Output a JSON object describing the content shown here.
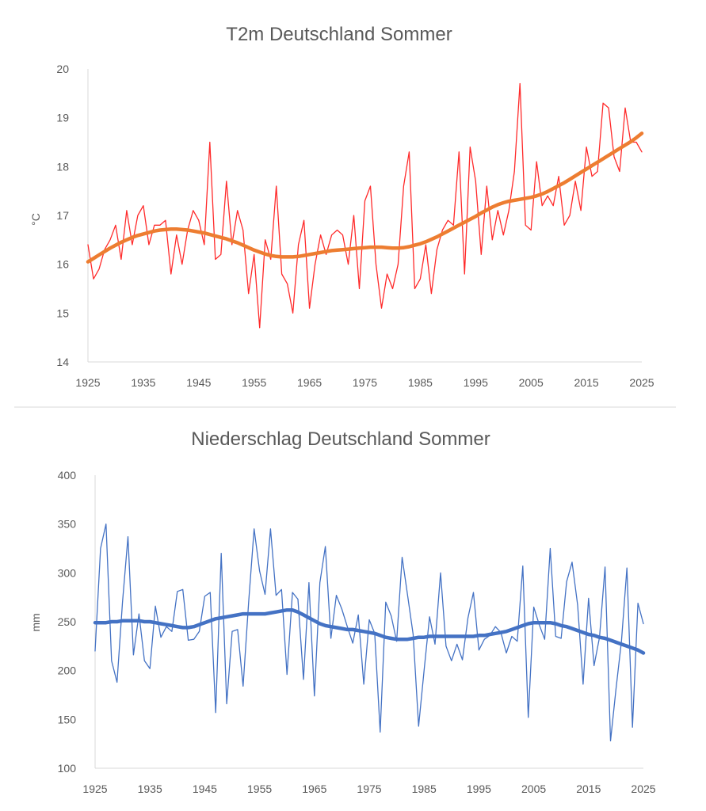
{
  "chart_data": [
    {
      "type": "line",
      "title": "T2m Deutschland Sommer",
      "xlabel": "",
      "ylabel": "°C",
      "xlim": [
        1925,
        2025
      ],
      "ylim": [
        14,
        20
      ],
      "y_ticks": [
        14,
        15,
        16,
        17,
        18,
        19,
        20
      ],
      "x_ticks": [
        1925,
        1935,
        1945,
        1955,
        1965,
        1975,
        1985,
        1995,
        2005,
        2015,
        2025
      ],
      "grid": false,
      "x": [
        1925,
        1926,
        1927,
        1928,
        1929,
        1930,
        1931,
        1932,
        1933,
        1934,
        1935,
        1936,
        1937,
        1938,
        1939,
        1940,
        1941,
        1942,
        1943,
        1944,
        1945,
        1946,
        1947,
        1948,
        1949,
        1950,
        1951,
        1952,
        1953,
        1954,
        1955,
        1956,
        1957,
        1958,
        1959,
        1960,
        1961,
        1962,
        1963,
        1964,
        1965,
        1966,
        1967,
        1968,
        1969,
        1970,
        1971,
        1972,
        1973,
        1974,
        1975,
        1976,
        1977,
        1978,
        1979,
        1980,
        1981,
        1982,
        1983,
        1984,
        1985,
        1986,
        1987,
        1988,
        1989,
        1990,
        1991,
        1992,
        1993,
        1994,
        1995,
        1996,
        1997,
        1998,
        1999,
        2000,
        2001,
        2002,
        2003,
        2004,
        2005,
        2006,
        2007,
        2008,
        2009,
        2010,
        2011,
        2012,
        2013,
        2014,
        2015,
        2016,
        2017,
        2018,
        2019,
        2020,
        2021,
        2022,
        2023,
        2024,
        2025
      ],
      "series": [
        {
          "name": "",
          "color": "#ff2a2a",
          "width": 1.3,
          "values": [
            16.4,
            15.7,
            15.9,
            16.3,
            16.5,
            16.8,
            16.1,
            17.1,
            16.4,
            17.0,
            17.2,
            16.4,
            16.8,
            16.8,
            16.9,
            15.8,
            16.6,
            16.0,
            16.7,
            17.1,
            16.9,
            16.4,
            18.5,
            16.1,
            16.2,
            17.7,
            16.4,
            17.1,
            16.7,
            15.4,
            16.2,
            14.7,
            16.5,
            16.1,
            17.6,
            15.8,
            15.6,
            15.0,
            16.4,
            16.9,
            15.1,
            16.0,
            16.6,
            16.2,
            16.6,
            16.7,
            16.6,
            16.0,
            17.0,
            15.5,
            17.3,
            17.6,
            16.0,
            15.1,
            15.8,
            15.5,
            16.0,
            17.6,
            18.3,
            15.5,
            15.7,
            16.4,
            15.4,
            16.3,
            16.7,
            16.9,
            16.8,
            18.3,
            15.8,
            18.4,
            17.7,
            16.2,
            17.6,
            16.5,
            17.1,
            16.6,
            17.1,
            17.9,
            19.7,
            16.8,
            16.7,
            18.1,
            17.2,
            17.4,
            17.2,
            17.8,
            16.8,
            17.0,
            17.7,
            17.1,
            18.4,
            17.8,
            17.9,
            19.3,
            19.2,
            18.2,
            17.9,
            19.2,
            18.5,
            18.5,
            18.3
          ]
        },
        {
          "name": "",
          "color": "#ed7d31",
          "width": 4.5,
          "values": [
            16.05,
            16.12,
            16.19,
            16.26,
            16.33,
            16.39,
            16.45,
            16.5,
            16.55,
            16.59,
            16.62,
            16.65,
            16.68,
            16.7,
            16.71,
            16.72,
            16.72,
            16.71,
            16.7,
            16.68,
            16.66,
            16.64,
            16.61,
            16.58,
            16.55,
            16.52,
            16.48,
            16.44,
            16.39,
            16.34,
            16.29,
            16.25,
            16.21,
            16.18,
            16.16,
            16.15,
            16.15,
            16.15,
            16.16,
            16.18,
            16.2,
            16.22,
            16.24,
            16.26,
            16.28,
            16.29,
            16.3,
            16.31,
            16.32,
            16.33,
            16.34,
            16.35,
            16.35,
            16.35,
            16.34,
            16.33,
            16.33,
            16.34,
            16.36,
            16.39,
            16.42,
            16.46,
            16.51,
            16.56,
            16.62,
            16.68,
            16.74,
            16.8,
            16.86,
            16.92,
            16.98,
            17.05,
            17.11,
            17.17,
            17.22,
            17.26,
            17.29,
            17.31,
            17.33,
            17.35,
            17.37,
            17.4,
            17.44,
            17.49,
            17.55,
            17.61,
            17.67,
            17.74,
            17.81,
            17.88,
            17.95,
            18.02,
            18.09,
            18.16,
            18.23,
            18.3,
            18.37,
            18.44,
            18.51,
            18.59,
            18.68
          ]
        }
      ]
    },
    {
      "type": "line",
      "title": "Niederschlag Deutschland Sommer",
      "xlabel": "",
      "ylabel": "mm",
      "xlim": [
        1925,
        2025
      ],
      "ylim": [
        100,
        400
      ],
      "y_ticks": [
        100,
        150,
        200,
        250,
        300,
        350,
        400
      ],
      "x_ticks": [
        1925,
        1935,
        1945,
        1955,
        1965,
        1975,
        1985,
        1995,
        2005,
        2015,
        2025
      ],
      "grid": false,
      "x": [
        1925,
        1926,
        1927,
        1928,
        1929,
        1930,
        1931,
        1932,
        1933,
        1934,
        1935,
        1936,
        1937,
        1938,
        1939,
        1940,
        1941,
        1942,
        1943,
        1944,
        1945,
        1946,
        1947,
        1948,
        1949,
        1950,
        1951,
        1952,
        1953,
        1954,
        1955,
        1956,
        1957,
        1958,
        1959,
        1960,
        1961,
        1962,
        1963,
        1964,
        1965,
        1966,
        1967,
        1968,
        1969,
        1970,
        1971,
        1972,
        1973,
        1974,
        1975,
        1976,
        1977,
        1978,
        1979,
        1980,
        1981,
        1982,
        1983,
        1984,
        1985,
        1986,
        1987,
        1988,
        1989,
        1990,
        1991,
        1992,
        1993,
        1994,
        1995,
        1996,
        1997,
        1998,
        1999,
        2000,
        2001,
        2002,
        2003,
        2004,
        2005,
        2006,
        2007,
        2008,
        2009,
        2010,
        2011,
        2012,
        2013,
        2014,
        2015,
        2016,
        2017,
        2018,
        2019,
        2020,
        2021,
        2022,
        2023,
        2024,
        2025
      ],
      "series": [
        {
          "name": "",
          "color": "#4472c4",
          "width": 1.3,
          "values": [
            220,
            325,
            350,
            210,
            188,
            270,
            337,
            216,
            258,
            210,
            202,
            266,
            234,
            245,
            240,
            281,
            283,
            231,
            232,
            240,
            276,
            280,
            157,
            320,
            166,
            240,
            242,
            184,
            270,
            345,
            302,
            278,
            345,
            277,
            283,
            196,
            280,
            273,
            191,
            290,
            174,
            290,
            327,
            233,
            277,
            263,
            245,
            228,
            257,
            186,
            252,
            238,
            137,
            270,
            256,
            230,
            316,
            277,
            237,
            143,
            200,
            255,
            227,
            300,
            225,
            210,
            227,
            211,
            254,
            280,
            221,
            232,
            236,
            245,
            239,
            218,
            235,
            230,
            307,
            152,
            265,
            247,
            232,
            325,
            235,
            233,
            291,
            311,
            267,
            186,
            274,
            205,
            234,
            306,
            128,
            181,
            230,
            305,
            142,
            269,
            248
          ]
        },
        {
          "name": "",
          "color": "#4472c4",
          "width": 4.5,
          "values": [
            249,
            249,
            249,
            250,
            250,
            251,
            251,
            251,
            251,
            250,
            250,
            249,
            248,
            247,
            246,
            245,
            244,
            244,
            245,
            247,
            249,
            251,
            253,
            254,
            255,
            256,
            257,
            258,
            258,
            258,
            258,
            258,
            259,
            260,
            261,
            262,
            262,
            260,
            257,
            254,
            251,
            248,
            246,
            245,
            244,
            243,
            242,
            242,
            241,
            240,
            239,
            238,
            236,
            234,
            233,
            232,
            232,
            232,
            233,
            234,
            234,
            235,
            235,
            235,
            235,
            235,
            235,
            235,
            235,
            235,
            236,
            236,
            237,
            238,
            239,
            240,
            242,
            244,
            246,
            248,
            249,
            249,
            249,
            249,
            248,
            246,
            245,
            243,
            241,
            239,
            237,
            236,
            234,
            233,
            231,
            229,
            227,
            225,
            223,
            221,
            218
          ]
        }
      ]
    }
  ]
}
